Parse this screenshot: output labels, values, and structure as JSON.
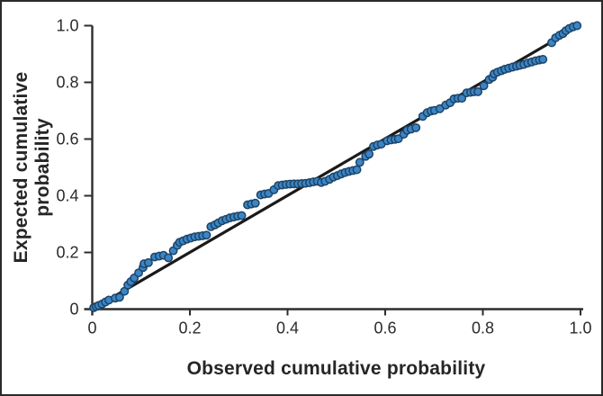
{
  "figure": {
    "background": "#ffffff",
    "border_color": "#2b2b2b"
  },
  "chart_data": {
    "type": "scatter",
    "title": "",
    "xlabel": "Observed cumulative probability",
    "ylabel": "Expected cumulative probability",
    "xlim": [
      0,
      1
    ],
    "ylim": [
      0,
      1
    ],
    "grid": false,
    "legend": false,
    "axis_color": "#2d2d2d",
    "tick_label_color": "#2b2b2b",
    "x_ticks": [
      {
        "v": 0.0,
        "label": "0"
      },
      {
        "v": 0.2,
        "label": "0.2"
      },
      {
        "v": 0.4,
        "label": "0.4"
      },
      {
        "v": 0.6,
        "label": "0.6"
      },
      {
        "v": 0.8,
        "label": "0.8"
      },
      {
        "v": 1.0,
        "label": "1.0"
      }
    ],
    "y_ticks": [
      {
        "v": 0.0,
        "label": "0"
      },
      {
        "v": 0.2,
        "label": "0.2"
      },
      {
        "v": 0.4,
        "label": "0.4"
      },
      {
        "v": 0.6,
        "label": "0.6"
      },
      {
        "v": 0.8,
        "label": "0.8"
      },
      {
        "v": 1.0,
        "label": "1.0"
      }
    ],
    "reference_line": {
      "x1": 0.0,
      "y1": 0.0,
      "x2": 0.935,
      "y2": 0.937,
      "color": "#1a1a1a",
      "width": 3.2
    },
    "point_style": {
      "fill": "#3c85c5",
      "stroke": "#1c4467",
      "radius": 4.2,
      "stroke_width": 1.5
    },
    "series": [
      {
        "name": "observed-vs-expected",
        "points": [
          [
            0.003,
            0.005
          ],
          [
            0.008,
            0.009
          ],
          [
            0.013,
            0.013
          ],
          [
            0.02,
            0.018
          ],
          [
            0.027,
            0.025
          ],
          [
            0.034,
            0.032
          ],
          [
            0.047,
            0.039
          ],
          [
            0.056,
            0.042
          ],
          [
            0.066,
            0.063
          ],
          [
            0.073,
            0.085
          ],
          [
            0.079,
            0.097
          ],
          [
            0.086,
            0.11
          ],
          [
            0.095,
            0.128
          ],
          [
            0.104,
            0.147
          ],
          [
            0.106,
            0.16
          ],
          [
            0.115,
            0.164
          ],
          [
            0.128,
            0.184
          ],
          [
            0.137,
            0.187
          ],
          [
            0.146,
            0.19
          ],
          [
            0.156,
            0.181
          ],
          [
            0.166,
            0.206
          ],
          [
            0.174,
            0.225
          ],
          [
            0.179,
            0.236
          ],
          [
            0.186,
            0.241
          ],
          [
            0.194,
            0.247
          ],
          [
            0.202,
            0.251
          ],
          [
            0.21,
            0.255
          ],
          [
            0.218,
            0.257
          ],
          [
            0.226,
            0.259
          ],
          [
            0.234,
            0.261
          ],
          [
            0.243,
            0.291
          ],
          [
            0.251,
            0.297
          ],
          [
            0.258,
            0.304
          ],
          [
            0.266,
            0.312
          ],
          [
            0.274,
            0.317
          ],
          [
            0.282,
            0.322
          ],
          [
            0.29,
            0.325
          ],
          [
            0.298,
            0.328
          ],
          [
            0.306,
            0.33
          ],
          [
            0.318,
            0.368
          ],
          [
            0.326,
            0.371
          ],
          [
            0.334,
            0.374
          ],
          [
            0.345,
            0.403
          ],
          [
            0.353,
            0.406
          ],
          [
            0.361,
            0.408
          ],
          [
            0.372,
            0.421
          ],
          [
            0.381,
            0.436
          ],
          [
            0.389,
            0.438
          ],
          [
            0.397,
            0.44
          ],
          [
            0.405,
            0.441
          ],
          [
            0.413,
            0.442
          ],
          [
            0.421,
            0.442
          ],
          [
            0.429,
            0.443
          ],
          [
            0.437,
            0.444
          ],
          [
            0.445,
            0.446
          ],
          [
            0.453,
            0.449
          ],
          [
            0.461,
            0.451
          ],
          [
            0.469,
            0.447
          ],
          [
            0.477,
            0.451
          ],
          [
            0.486,
            0.458
          ],
          [
            0.494,
            0.466
          ],
          [
            0.502,
            0.471
          ],
          [
            0.51,
            0.477
          ],
          [
            0.518,
            0.482
          ],
          [
            0.526,
            0.486
          ],
          [
            0.534,
            0.489
          ],
          [
            0.542,
            0.492
          ],
          [
            0.548,
            0.518
          ],
          [
            0.56,
            0.539
          ],
          [
            0.567,
            0.547
          ],
          [
            0.576,
            0.574
          ],
          [
            0.584,
            0.579
          ],
          [
            0.592,
            0.582
          ],
          [
            0.604,
            0.594
          ],
          [
            0.612,
            0.597
          ],
          [
            0.62,
            0.599
          ],
          [
            0.627,
            0.601
          ],
          [
            0.638,
            0.617
          ],
          [
            0.645,
            0.631
          ],
          [
            0.653,
            0.635
          ],
          [
            0.663,
            0.64
          ],
          [
            0.677,
            0.68
          ],
          [
            0.686,
            0.693
          ],
          [
            0.694,
            0.699
          ],
          [
            0.701,
            0.701
          ],
          [
            0.712,
            0.707
          ],
          [
            0.724,
            0.72
          ],
          [
            0.733,
            0.728
          ],
          [
            0.741,
            0.742
          ],
          [
            0.749,
            0.744
          ],
          [
            0.757,
            0.744
          ],
          [
            0.767,
            0.763
          ],
          [
            0.775,
            0.765
          ],
          [
            0.782,
            0.767
          ],
          [
            0.79,
            0.767
          ],
          [
            0.802,
            0.788
          ],
          [
            0.813,
            0.81
          ],
          [
            0.82,
            0.818
          ],
          [
            0.823,
            0.83
          ],
          [
            0.83,
            0.836
          ],
          [
            0.838,
            0.841
          ],
          [
            0.845,
            0.846
          ],
          [
            0.853,
            0.85
          ],
          [
            0.861,
            0.854
          ],
          [
            0.869,
            0.857
          ],
          [
            0.876,
            0.86
          ],
          [
            0.884,
            0.863
          ],
          [
            0.892,
            0.868
          ],
          [
            0.9,
            0.872
          ],
          [
            0.908,
            0.876
          ],
          [
            0.916,
            0.879
          ],
          [
            0.923,
            0.881
          ],
          [
            0.941,
            0.94
          ],
          [
            0.949,
            0.957
          ],
          [
            0.957,
            0.966
          ],
          [
            0.964,
            0.972
          ],
          [
            0.97,
            0.982
          ],
          [
            0.977,
            0.99
          ],
          [
            0.985,
            0.996
          ],
          [
            0.993,
            1.0
          ]
        ]
      }
    ]
  }
}
